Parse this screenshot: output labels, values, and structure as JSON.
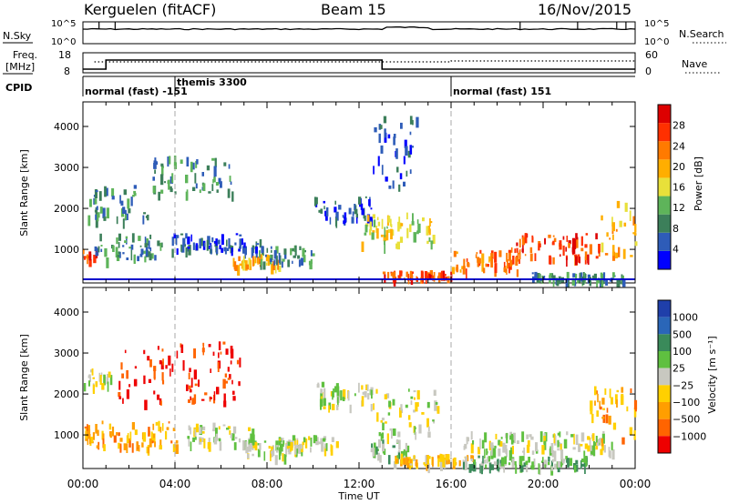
{
  "header": {
    "radar": "Kerguelen (fitACF)",
    "beam": "Beam 15",
    "date": "16/Nov/2015"
  },
  "sky_panel": {
    "left_label": "N.Sky",
    "right_label": "N.Search",
    "left_ticks": [
      "10^5",
      "10^0"
    ],
    "right_ticks": [
      "10^5",
      "10^0"
    ]
  },
  "freq_panel": {
    "left_label_1": "Freq.",
    "left_label_2": "[MHz]",
    "right_label": "Nave",
    "left_ticks": [
      "18",
      "8"
    ],
    "right_ticks": [
      "60",
      "0"
    ]
  },
  "cpid": {
    "label": "CPID",
    "segments": [
      {
        "name": "normal (fast) -151",
        "start_hr": 0
      },
      {
        "name": "themis 3300",
        "start_hr": 4
      },
      {
        "name": "normal (fast) 151",
        "start_hr": 16
      }
    ]
  },
  "colors": {
    "power": [
      "#0000ff",
      "#2e5cb8",
      "#3c7f5a",
      "#5eb45a",
      "#e8e03a",
      "#ffae00",
      "#ff7a00",
      "#ff3000",
      "#dd0000"
    ],
    "velocity": [
      "#1f3faa",
      "#2a66b8",
      "#3a8a5a",
      "#5fc040",
      "#c8c8c0",
      "#ffd000",
      "#ff9e00",
      "#ff6400",
      "#ee0000"
    ]
  },
  "chart_data": [
    {
      "type": "heatmap",
      "name": "power",
      "xlabel": "",
      "ylabel": "Slant Range [km]",
      "xlim_hours": [
        0,
        24
      ],
      "ylim_km": [
        180,
        4600
      ],
      "yticks": [
        1000,
        2000,
        3000,
        4000
      ],
      "colorbar": {
        "label": "Power [dB]",
        "range": [
          0,
          32
        ],
        "ticks": [
          4,
          8,
          12,
          16,
          20,
          24,
          28
        ]
      },
      "dashed_markers_hr": [
        4,
        16
      ],
      "regions": [
        {
          "t0": 0.0,
          "t1": 0.6,
          "r0": 700,
          "r1": 1200,
          "level": 7
        },
        {
          "t0": 0.5,
          "t1": 3.5,
          "r0": 800,
          "r1": 1400,
          "level": 2
        },
        {
          "t0": 0.2,
          "t1": 2.8,
          "r0": 1750,
          "r1": 2600,
          "level": 2
        },
        {
          "t0": 3.0,
          "t1": 6.5,
          "r0": 2400,
          "r1": 3300,
          "level": 2
        },
        {
          "t0": 3.8,
          "t1": 7.8,
          "r0": 1000,
          "r1": 1400,
          "level": 1
        },
        {
          "t0": 6.5,
          "t1": 8.5,
          "r0": 600,
          "r1": 900,
          "level": 5
        },
        {
          "t0": 7.5,
          "t1": 10.0,
          "r0": 700,
          "r1": 1100,
          "level": 2
        },
        {
          "t0": 10.0,
          "t1": 12.5,
          "r0": 1700,
          "r1": 2300,
          "level": 1
        },
        {
          "t0": 12.0,
          "t1": 15.2,
          "r0": 1100,
          "r1": 1900,
          "level": 4
        },
        {
          "t0": 13.0,
          "t1": 16.0,
          "r0": 300,
          "r1": 500,
          "level": 7
        },
        {
          "t0": 12.5,
          "t1": 14.5,
          "r0": 2500,
          "r1": 4300,
          "level": 1
        },
        {
          "t0": 16.0,
          "t1": 19.0,
          "r0": 500,
          "r1": 1000,
          "level": 6
        },
        {
          "t0": 18.5,
          "t1": 22.5,
          "r0": 800,
          "r1": 1400,
          "level": 7
        },
        {
          "t0": 22.5,
          "t1": 24.0,
          "r0": 800,
          "r1": 2200,
          "level": 5
        },
        {
          "t0": 19.5,
          "t1": 23.5,
          "r0": 250,
          "r1": 450,
          "level": 2
        }
      ]
    },
    {
      "type": "heatmap",
      "name": "velocity",
      "xlabel": "Time UT",
      "ylabel": "Slant Range [km]",
      "xlim_hours": [
        0,
        24
      ],
      "ylim_km": [
        180,
        4600
      ],
      "yticks": [
        1000,
        2000,
        3000,
        4000
      ],
      "xticks": [
        "00:00",
        "04:00",
        "08:00",
        "12:00",
        "16:00",
        "20:00",
        "00:00"
      ],
      "colorbar": {
        "label": "Velocity [m s⁻¹]",
        "ticks": [
          "1000",
          "500",
          "100",
          "25",
          "−25",
          "−100",
          "−500",
          "−1000"
        ]
      },
      "dashed_markers_hr": [
        4,
        16
      ],
      "regions": [
        {
          "t0": 0.0,
          "t1": 4.2,
          "r0": 700,
          "r1": 1350,
          "level": 6
        },
        {
          "t0": 0.0,
          "t1": 1.2,
          "r0": 2200,
          "r1": 2700,
          "level": 4
        },
        {
          "t0": 1.5,
          "t1": 6.8,
          "r0": 1800,
          "r1": 3300,
          "level": 8
        },
        {
          "t0": 4.5,
          "t1": 7.5,
          "r0": 800,
          "r1": 1300,
          "level": 4
        },
        {
          "t0": 7.0,
          "t1": 9.5,
          "r0": 500,
          "r1": 900,
          "level": 4
        },
        {
          "t0": 8.5,
          "t1": 11.0,
          "r0": 700,
          "r1": 1000,
          "level": 4
        },
        {
          "t0": 10.0,
          "t1": 12.5,
          "r0": 1700,
          "r1": 2300,
          "level": 4
        },
        {
          "t0": 12.5,
          "t1": 15.5,
          "r0": 1000,
          "r1": 2200,
          "level": 4
        },
        {
          "t0": 12.5,
          "t1": 14.2,
          "r0": 500,
          "r1": 900,
          "level": 3
        },
        {
          "t0": 13.5,
          "t1": 17.0,
          "r0": 300,
          "r1": 550,
          "level": 5
        },
        {
          "t0": 16.5,
          "t1": 23.0,
          "r0": 600,
          "r1": 1100,
          "level": 4
        },
        {
          "t0": 16.5,
          "t1": 22.0,
          "r0": 250,
          "r1": 500,
          "level": 3
        },
        {
          "t0": 22.0,
          "t1": 24.0,
          "r0": 900,
          "r1": 2200,
          "level": 6
        }
      ]
    }
  ]
}
